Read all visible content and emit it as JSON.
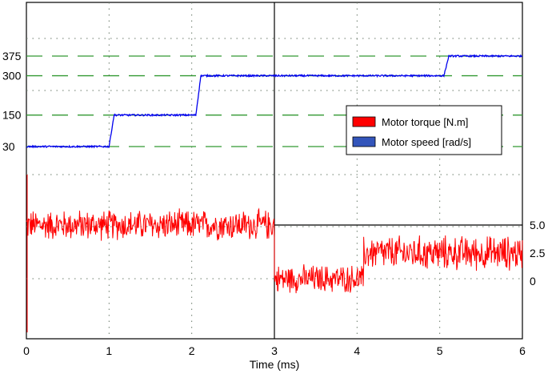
{
  "chart_data": {
    "type": "line",
    "xlabel": "Time (ms)",
    "x_ticks": [
      "0",
      "1",
      "2",
      "3",
      "4",
      "5",
      "6"
    ],
    "xlim": [
      0,
      6
    ],
    "grid": "dotted",
    "legend_position": "right",
    "left_axis_ticks": [
      "375",
      "300",
      "150",
      "30"
    ],
    "right_axis_ticks": [
      "5.0",
      "2.5",
      "0"
    ],
    "series": [
      {
        "name": "Motor torque [N.m]",
        "color": "#ff0000",
        "axis": "right",
        "steps": [
          {
            "x_start": 0.0,
            "x_end": 3.0,
            "mean": 5.0,
            "noise": 1.4
          },
          {
            "x_start": 3.0,
            "x_end": 4.08,
            "mean": 0.2,
            "noise": 1.3
          },
          {
            "x_start": 4.08,
            "x_end": 6.0,
            "mean": 2.5,
            "noise": 1.6
          }
        ]
      },
      {
        "name": "Motor speed [rad/s]",
        "color": "#0000ee",
        "axis": "left",
        "steps": [
          {
            "x_start": 0.0,
            "x_end": 1.0,
            "value": 30
          },
          {
            "x_start": 1.0,
            "x_end": 2.05,
            "value": 150
          },
          {
            "x_start": 2.05,
            "x_end": 5.05,
            "value": 300
          },
          {
            "x_start": 5.05,
            "x_end": 6.0,
            "value": 375
          }
        ]
      }
    ],
    "reference_lines": [
      30,
      150,
      300,
      375
    ],
    "reference_line_color": "#339933"
  }
}
